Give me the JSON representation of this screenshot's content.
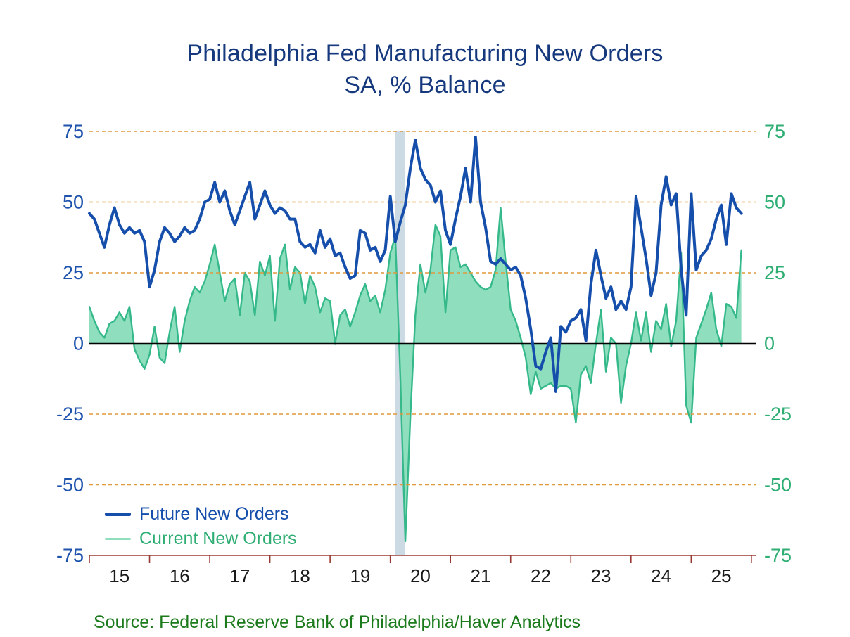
{
  "title": {
    "line1": "Philadelphia Fed Manufacturing New Orders",
    "line2": "SA, % Balance"
  },
  "source": "Source:  Federal Reserve Bank of Philadelphia/Haver Analytics",
  "legend": {
    "future_label": "Future New Orders",
    "current_label": "Current New Orders"
  },
  "y_axis": {
    "ticks_left": [
      "75",
      "50",
      "25",
      "0",
      "-25",
      "-50",
      "-75"
    ],
    "ticks_right": [
      "75",
      "50",
      "25",
      "0",
      "-25",
      "-50",
      "-75"
    ],
    "tick_values": [
      75,
      50,
      25,
      0,
      -25,
      -50,
      -75
    ],
    "gridline_values": [
      75,
      50,
      25,
      -25,
      -50
    ]
  },
  "x_axis": {
    "year_labels": [
      "15",
      "16",
      "17",
      "18",
      "19",
      "20",
      "21",
      "22",
      "23",
      "24",
      "25"
    ]
  },
  "colors": {
    "title": "#16397e",
    "future_line": "#154fab",
    "current_stroke": "#35b98b",
    "current_fill": "#8fdebe",
    "left_axis_labels": "#1d52ad",
    "right_axis_labels": "#2fae74",
    "gridline": "#e0993d",
    "zero_line": "#000000",
    "x_axis": "#993b32",
    "x_labels": "#1a1a1a",
    "recession_band": "#ccdae4",
    "legend_future_text": "#154fab",
    "legend_current_text": "#2fae74",
    "source_text": "#1b7a1b",
    "background": "#ffffff"
  },
  "chart_data": {
    "type": "line",
    "frequency": "monthly",
    "x_start": "2015-01",
    "x_end": "2025-11",
    "title": "Philadelphia Fed Manufacturing New Orders SA, % Balance",
    "ylim": [
      -75,
      75
    ],
    "x_axis_domain_months": 134,
    "grid": "dashed horizontal at 25-unit intervals",
    "legend_position": "bottom-left inside plot",
    "recession_band": {
      "start": "2020-02",
      "end": "2020-04",
      "start_month_index": 61,
      "end_month_index": 63
    },
    "series": [
      {
        "name": "Future New Orders",
        "type": "line",
        "color": "#154fab",
        "values": [
          46,
          44,
          39,
          34,
          42,
          48,
          42,
          39,
          41,
          39,
          40,
          36,
          20,
          26,
          36,
          41,
          39,
          36,
          38,
          41,
          39,
          40,
          44,
          50,
          51,
          57,
          50,
          54,
          47,
          42,
          47,
          52,
          57,
          44,
          49,
          54,
          49,
          46,
          48,
          47,
          44,
          44,
          36,
          34,
          35,
          32,
          40,
          34,
          37,
          31,
          32,
          27,
          23,
          24,
          40,
          39,
          33,
          34,
          29,
          33,
          52,
          36,
          43,
          49,
          62,
          72,
          62,
          58,
          56,
          50,
          54,
          40,
          35,
          44,
          52,
          62,
          50,
          73,
          50,
          41,
          29,
          28,
          30,
          28,
          26,
          27,
          24,
          16,
          5,
          -8,
          -9,
          -3,
          2,
          -17,
          6,
          4,
          8,
          9,
          12,
          1,
          21,
          33,
          24,
          16,
          20,
          12,
          15,
          12,
          20,
          52,
          41,
          30,
          17,
          25,
          49,
          59,
          49,
          53,
          26,
          10,
          53,
          26,
          31,
          33,
          37,
          44,
          49,
          35,
          53,
          48,
          46
        ]
      },
      {
        "name": "Current New Orders",
        "type": "area",
        "stroke": "#35b98b",
        "fill": "#8fdebe",
        "values": [
          13,
          8,
          4,
          2,
          7,
          8,
          11,
          8,
          13,
          -2,
          -6,
          -9,
          -4,
          6,
          -5,
          -7,
          4,
          13,
          -3,
          8,
          15,
          20,
          18,
          22,
          28,
          35,
          25,
          15,
          21,
          23,
          10,
          25,
          22,
          10,
          29,
          24,
          31,
          8,
          30,
          35,
          19,
          27,
          25,
          14,
          24,
          20,
          11,
          16,
          15,
          0,
          10,
          12,
          6,
          11,
          17,
          21,
          15,
          17,
          11,
          19,
          32,
          38,
          -12,
          -70,
          -26,
          10,
          28,
          18,
          26,
          42,
          38,
          11,
          33,
          34,
          27,
          28,
          25,
          22,
          20,
          19,
          20,
          26,
          48,
          29,
          12,
          8,
          2,
          -5,
          -18,
          -10,
          -16,
          -15,
          -14,
          -16,
          -15,
          -15,
          -16,
          -28,
          -11,
          -8,
          -14,
          0,
          12,
          -10,
          2,
          0,
          -21,
          -8,
          0,
          11,
          1,
          11,
          -3,
          8,
          5,
          14,
          -1,
          8,
          32,
          -22,
          -28,
          2,
          7,
          12,
          18,
          5,
          -1,
          14,
          13,
          9,
          33
        ]
      }
    ]
  }
}
